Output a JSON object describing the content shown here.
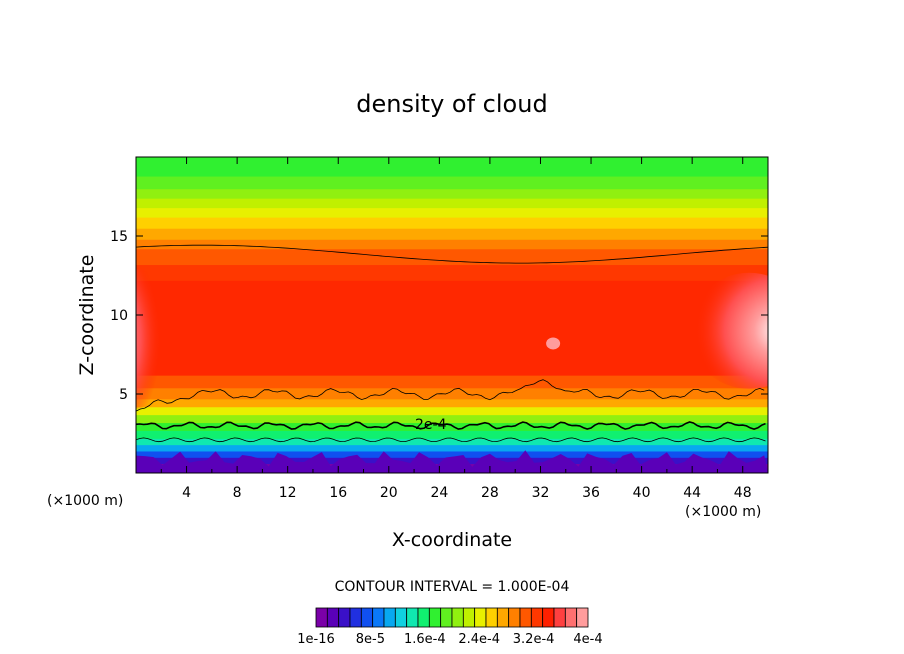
{
  "chart_data": {
    "type": "heatmap",
    "title": "density of cloud",
    "xlabel": "X-coordinate",
    "ylabel": "Z-coordinate",
    "x_unit_left": "(×1000 m)",
    "x_unit_right": "(×1000 m)",
    "xlim": [
      0,
      50
    ],
    "ylim": [
      0,
      20
    ],
    "x_ticks": [
      4,
      8,
      12,
      16,
      20,
      24,
      28,
      32,
      36,
      40,
      44,
      48
    ],
    "y_ticks": [
      5,
      10,
      15
    ],
    "contour_interval_text": "CONTOUR INTERVAL = 1.000E-04",
    "contour_label": "2e-4",
    "colorbar": {
      "min": 1e-16,
      "max": 0.0004,
      "levels": 24,
      "tick_labels": [
        "1e-16",
        "8e-5",
        "1.6e-4",
        "2.4e-4",
        "3.2e-4",
        "4e-4"
      ],
      "colors": [
        "#7a00a8",
        "#5a00b8",
        "#3a10c8",
        "#2030e0",
        "#1050f0",
        "#0a78f8",
        "#08a8f0",
        "#10d0e0",
        "#10e8b0",
        "#10f070",
        "#30f030",
        "#60f020",
        "#90f010",
        "#c0f000",
        "#e8f000",
        "#ffd000",
        "#ffa800",
        "#ff8000",
        "#ff5800",
        "#ff3800",
        "#ff2000",
        "#ff4040",
        "#ff7070",
        "#ff9c9c"
      ]
    }
  }
}
